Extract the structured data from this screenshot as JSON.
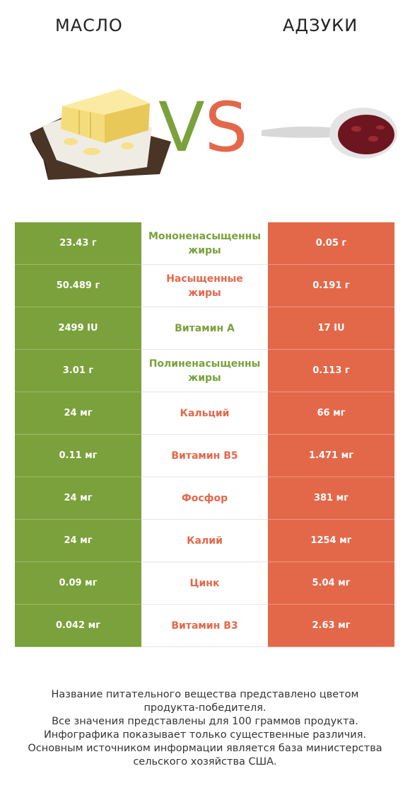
{
  "header": {
    "left_product": "МАСЛО",
    "right_product": "АДЗУКИ",
    "vs_v": "V",
    "vs_s": "S"
  },
  "colors": {
    "left": "#7aa13b",
    "right": "#e3684a"
  },
  "rows": [
    {
      "left": "23.43 г",
      "nutrient_line1": "Мононенасыщенны",
      "nutrient_line2": "жиры",
      "right": "0.05 г",
      "winner": "left"
    },
    {
      "left": "50.489 г",
      "nutrient_line1": "Насыщенные",
      "nutrient_line2": "жиры",
      "right": "0.191 г",
      "winner": "right"
    },
    {
      "left": "2499 IU",
      "nutrient_line1": "Витамин A",
      "nutrient_line2": "",
      "right": "17 IU",
      "winner": "left"
    },
    {
      "left": "3.01 г",
      "nutrient_line1": "Полиненасыщенны",
      "nutrient_line2": "жиры",
      "right": "0.113 г",
      "winner": "left"
    },
    {
      "left": "24 мг",
      "nutrient_line1": "Кальций",
      "nutrient_line2": "",
      "right": "66 мг",
      "winner": "right"
    },
    {
      "left": "0.11 мг",
      "nutrient_line1": "Витамин B5",
      "nutrient_line2": "",
      "right": "1.471 мг",
      "winner": "right"
    },
    {
      "left": "24 мг",
      "nutrient_line1": "Фосфор",
      "nutrient_line2": "",
      "right": "381 мг",
      "winner": "right"
    },
    {
      "left": "24 мг",
      "nutrient_line1": "Калий",
      "nutrient_line2": "",
      "right": "1254 мг",
      "winner": "right"
    },
    {
      "left": "0.09 мг",
      "nutrient_line1": "Цинк",
      "nutrient_line2": "",
      "right": "5.04 мг",
      "winner": "right"
    },
    {
      "left": "0.042 мг",
      "nutrient_line1": "Витамин B3",
      "nutrient_line2": "",
      "right": "2.63 мг",
      "winner": "right"
    }
  ],
  "footnote": {
    "line1": "Название питательного вещества представлено цветом",
    "line2": "продукта-победителя.",
    "line3": "Все значения представлены для 100 граммов продукта.",
    "line4": "Инфографика показывает только существенные различия.",
    "line5": "Основным источником информации является база министерства",
    "line6": "сельского хозяйства США."
  }
}
